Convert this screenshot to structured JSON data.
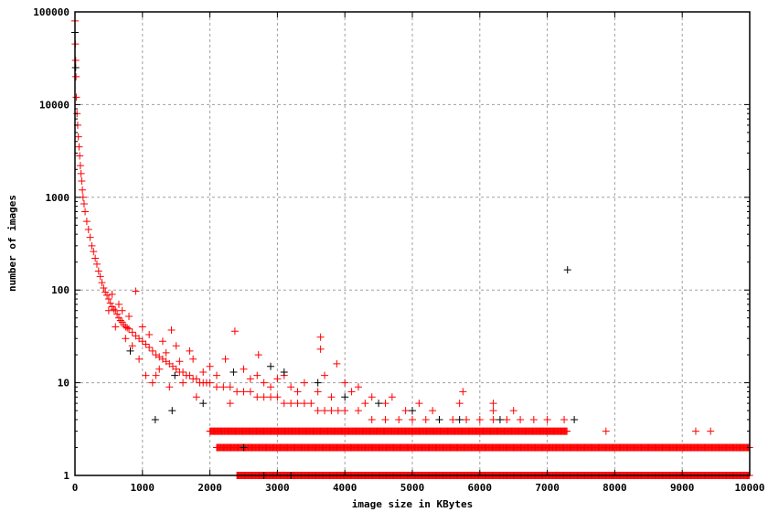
{
  "chart_data": {
    "type": "scatter",
    "title": "",
    "xlabel": "image size in KBytes",
    "ylabel": "number of images",
    "xlim": [
      0,
      10000
    ],
    "ylim": [
      1,
      100000
    ],
    "yscale": "log",
    "grid": true,
    "x_ticks": [
      "0",
      "1000",
      "2000",
      "3000",
      "4000",
      "5000",
      "6000",
      "7000",
      "8000",
      "9000",
      "10000"
    ],
    "y_ticks": [
      "1",
      "10",
      "100",
      "1000",
      "10000",
      "100000"
    ],
    "marker": "plus",
    "colors": {
      "red_series": "#ff0000",
      "black_series": "#000000",
      "grid": "#a0a0a0"
    },
    "series": [
      {
        "color": "#ff0000",
        "points": [
          [
            0,
            80000
          ],
          [
            5,
            45000
          ],
          [
            10,
            30000
          ],
          [
            15,
            20000
          ],
          [
            20,
            12000
          ],
          [
            30,
            8000
          ],
          [
            40,
            6000
          ],
          [
            50,
            4500
          ],
          [
            60,
            3500
          ],
          [
            70,
            2800
          ],
          [
            80,
            2200
          ],
          [
            90,
            1800
          ],
          [
            100,
            1500
          ],
          [
            110,
            1200
          ],
          [
            120,
            1000
          ],
          [
            135,
            850
          ],
          [
            150,
            700
          ],
          [
            175,
            550
          ],
          [
            200,
            450
          ],
          [
            225,
            370
          ],
          [
            250,
            300
          ],
          [
            275,
            260
          ],
          [
            300,
            220
          ],
          [
            325,
            190
          ],
          [
            350,
            160
          ],
          [
            375,
            140
          ],
          [
            400,
            120
          ],
          [
            425,
            105
          ],
          [
            450,
            95
          ],
          [
            475,
            88
          ],
          [
            500,
            80
          ],
          [
            525,
            72
          ],
          [
            550,
            66
          ],
          [
            575,
            62
          ],
          [
            600,
            60
          ],
          [
            625,
            55
          ],
          [
            650,
            50
          ],
          [
            675,
            47
          ],
          [
            700,
            45
          ],
          [
            725,
            42
          ],
          [
            750,
            40
          ],
          [
            775,
            39
          ],
          [
            800,
            38
          ],
          [
            850,
            35
          ],
          [
            900,
            32
          ],
          [
            950,
            30
          ],
          [
            1000,
            28
          ],
          [
            1050,
            26
          ],
          [
            1100,
            24
          ],
          [
            1150,
            22
          ],
          [
            1200,
            20
          ],
          [
            1250,
            19
          ],
          [
            1300,
            18
          ],
          [
            1350,
            17
          ],
          [
            1400,
            16
          ],
          [
            1450,
            15
          ],
          [
            1500,
            14
          ],
          [
            1550,
            13
          ],
          [
            1600,
            13
          ],
          [
            1650,
            12
          ],
          [
            1700,
            12
          ],
          [
            1750,
            11
          ],
          [
            1800,
            11
          ],
          [
            1850,
            10
          ],
          [
            1900,
            10
          ],
          [
            1950,
            10
          ],
          [
            2000,
            10
          ],
          [
            2100,
            9
          ],
          [
            2200,
            9
          ],
          [
            2300,
            9
          ],
          [
            2400,
            8
          ],
          [
            2500,
            8
          ],
          [
            2600,
            8
          ],
          [
            2700,
            7
          ],
          [
            2800,
            7
          ],
          [
            2900,
            7
          ],
          [
            3000,
            7
          ],
          [
            3100,
            6
          ],
          [
            3200,
            6
          ],
          [
            3300,
            6
          ],
          [
            3400,
            6
          ],
          [
            3500,
            6
          ],
          [
            3600,
            5
          ],
          [
            3700,
            5
          ],
          [
            3800,
            5
          ],
          [
            3900,
            5
          ],
          [
            4000,
            5
          ],
          [
            4200,
            5
          ],
          [
            4400,
            4
          ],
          [
            4600,
            4
          ],
          [
            4800,
            4
          ],
          [
            5000,
            4
          ],
          [
            5200,
            4
          ],
          [
            5400,
            4
          ],
          [
            5600,
            4
          ],
          [
            5800,
            4
          ],
          [
            6000,
            4
          ],
          [
            6200,
            4
          ],
          [
            6400,
            4
          ],
          [
            6600,
            4
          ],
          [
            6800,
            4
          ],
          [
            7000,
            4
          ],
          [
            900,
            97
          ],
          [
            1430,
            37
          ],
          [
            2370,
            36
          ],
          [
            3640,
            31
          ],
          [
            3640,
            23
          ],
          [
            3880,
            16
          ],
          [
            2720,
            20
          ],
          [
            2230,
            18
          ],
          [
            1500,
            25
          ],
          [
            1700,
            22
          ],
          [
            1300,
            28
          ],
          [
            1100,
            33
          ],
          [
            800,
            52
          ],
          [
            700,
            60
          ],
          [
            650,
            70
          ],
          [
            550,
            90
          ],
          [
            1000,
            40
          ],
          [
            1200,
            12
          ],
          [
            1400,
            9
          ],
          [
            1600,
            10
          ],
          [
            1800,
            7
          ],
          [
            2000,
            15
          ],
          [
            2100,
            12
          ],
          [
            2300,
            6
          ],
          [
            2500,
            14
          ],
          [
            2700,
            12
          ],
          [
            2800,
            10
          ],
          [
            2900,
            9
          ],
          [
            3000,
            11
          ],
          [
            3200,
            9
          ],
          [
            3300,
            8
          ],
          [
            3400,
            10
          ],
          [
            3600,
            8
          ],
          [
            3700,
            12
          ],
          [
            3800,
            7
          ],
          [
            4100,
            8
          ],
          [
            4200,
            9
          ],
          [
            4400,
            7
          ],
          [
            4600,
            6
          ],
          [
            4700,
            7
          ],
          [
            4900,
            5
          ],
          [
            5100,
            6
          ],
          [
            5300,
            5
          ],
          [
            5750,
            8
          ],
          [
            5700,
            6
          ],
          [
            6200,
            6
          ],
          [
            6200,
            5
          ],
          [
            6500,
            5
          ],
          [
            7250,
            4
          ],
          [
            7870,
            3
          ],
          [
            9200,
            3
          ],
          [
            9420,
            3
          ],
          [
            4000,
            10
          ],
          [
            4300,
            6
          ],
          [
            3100,
            12
          ],
          [
            2600,
            11
          ],
          [
            1900,
            13
          ],
          [
            1750,
            18
          ],
          [
            1550,
            17
          ],
          [
            1350,
            21
          ],
          [
            1250,
            14
          ],
          [
            1150,
            10
          ],
          [
            1050,
            12
          ],
          [
            950,
            18
          ],
          [
            850,
            25
          ],
          [
            750,
            30
          ],
          [
            600,
            40
          ],
          [
            500,
            60
          ]
        ],
        "bands": [
          {
            "y": 3,
            "x_range": [
              2000,
              7300
            ]
          },
          {
            "y": 2,
            "x_range": [
              2100,
              10000
            ]
          },
          {
            "y": 1,
            "x_range": [
              2400,
              10000
            ]
          }
        ]
      },
      {
        "color": "#000000",
        "points": [
          [
            0,
            60000
          ],
          [
            10,
            25000
          ],
          [
            820,
            22
          ],
          [
            1190,
            4
          ],
          [
            1440,
            5
          ],
          [
            1480,
            12
          ],
          [
            1900,
            6
          ],
          [
            2350,
            13
          ],
          [
            2900,
            15
          ],
          [
            3100,
            13
          ],
          [
            3600,
            10
          ],
          [
            4000,
            7
          ],
          [
            4500,
            6
          ],
          [
            5000,
            5
          ],
          [
            5400,
            4
          ],
          [
            5700,
            4
          ],
          [
            6300,
            4
          ],
          [
            7400,
            4
          ],
          [
            7300,
            165
          ],
          [
            2500,
            2
          ],
          [
            3200,
            1
          ],
          [
            2800,
            1
          ]
        ]
      }
    ]
  }
}
